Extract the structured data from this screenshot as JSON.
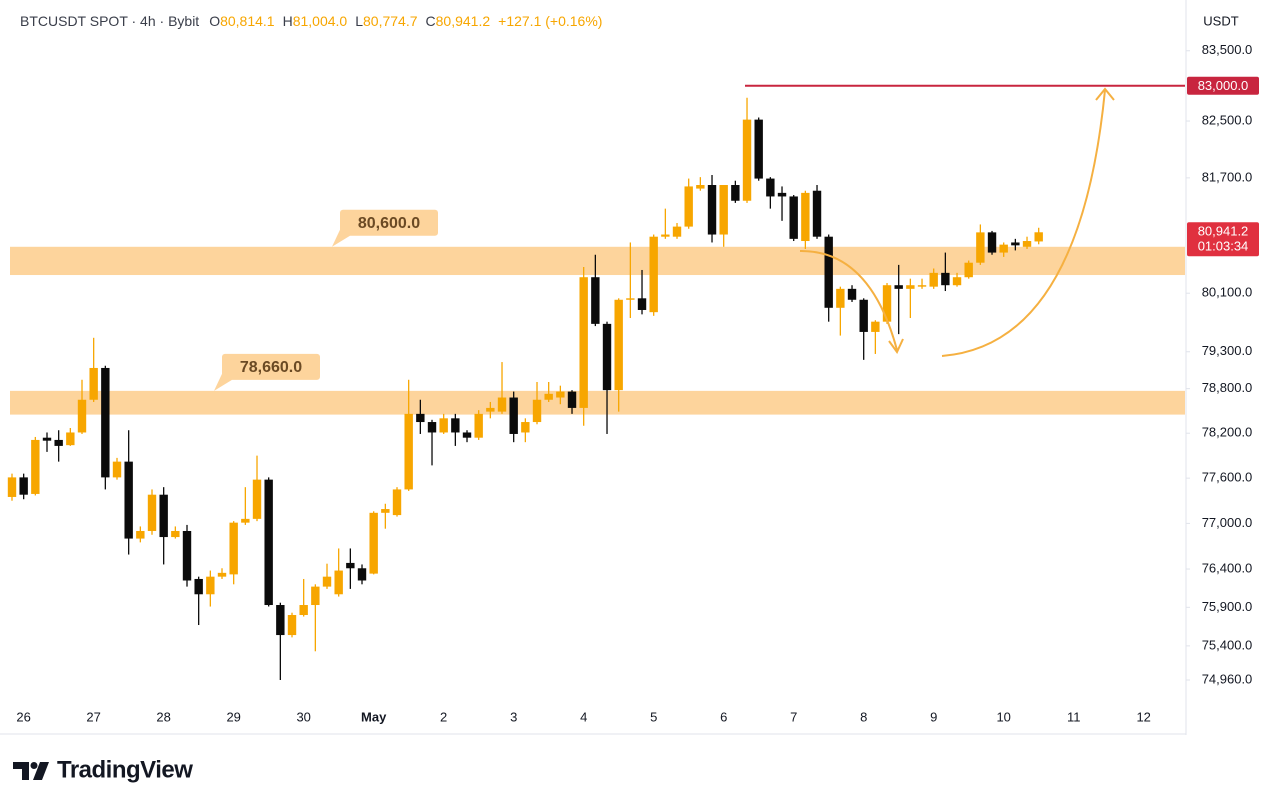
{
  "chart_data": {
    "type": "candlestick",
    "header": {
      "symbol": "BTCUSDT SPOT · 4h · Bybit",
      "ohlc": [
        {
          "key": "O",
          "label": "80,814.1"
        },
        {
          "key": "H",
          "label": "81,004.0"
        },
        {
          "key": "L",
          "label": "80,774.7"
        },
        {
          "key": "C",
          "label": "80,941.2"
        }
      ],
      "change": "+127.1 (+0.16%)"
    },
    "y_axis_label": "USDT",
    "log_scale": true,
    "grid": false,
    "up_color": "#f7a600",
    "down_color": "#0b0b0b",
    "ylim": [
      74665,
      84230
    ],
    "yticks": [
      {
        "value": 83500,
        "label": "83,500.0"
      },
      {
        "value": 82500,
        "label": "82,500.0"
      },
      {
        "value": 81700,
        "label": "81,700.0"
      },
      {
        "value": 80100,
        "label": "80,100.0"
      },
      {
        "value": 79300,
        "label": "79,300.0"
      },
      {
        "value": 78800,
        "label": "78,800.0"
      },
      {
        "value": 78200,
        "label": "78,200.0"
      },
      {
        "value": 77600,
        "label": "77,600.0"
      },
      {
        "value": 77000,
        "label": "77,000.0"
      },
      {
        "value": 76400,
        "label": "76,400.0"
      },
      {
        "value": 75900,
        "label": "75,900.0"
      },
      {
        "value": 75400,
        "label": "75,400.0"
      },
      {
        "value": 74960,
        "label": "74,960.0"
      }
    ],
    "target": {
      "value": 83000,
      "label": "83,000.0",
      "color": "#c8253f"
    },
    "last_price": {
      "value": 80941.2,
      "label": "80,941.2",
      "countdown": "01:03:34",
      "color": "#e0303f"
    },
    "zones": [
      {
        "label": "80,600.0",
        "low": 80350,
        "high": 80740,
        "color": "#fdd49c"
      },
      {
        "label": "78,660.0",
        "low": 78450,
        "high": 78770,
        "color": "#fdd49c"
      }
    ],
    "categories": [
      null,
      "26",
      null,
      null,
      null,
      null,
      null,
      "27",
      null,
      null,
      null,
      null,
      null,
      "28",
      null,
      null,
      null,
      null,
      null,
      "29",
      null,
      null,
      null,
      null,
      null,
      "30",
      null,
      null,
      null,
      null,
      null,
      "May",
      null,
      null,
      null,
      null,
      null,
      "2",
      null,
      null,
      null,
      null,
      null,
      "3",
      null,
      null,
      null,
      null,
      null,
      "4",
      null,
      null,
      null,
      null,
      null,
      "5",
      null,
      null,
      null,
      null,
      null,
      "6",
      null,
      null,
      null,
      null,
      null,
      "7",
      null,
      null,
      null,
      null,
      null,
      "8",
      null,
      null,
      null,
      null,
      null,
      "9",
      null,
      null,
      null,
      null,
      null,
      "10",
      null,
      null,
      null,
      null,
      null,
      "11",
      null,
      null,
      null,
      null,
      null,
      "12",
      null,
      null,
      null
    ],
    "open": [
      77350,
      77610,
      77390,
      78140,
      78110,
      78040,
      78210,
      78650,
      79080,
      77610,
      77820,
      76800,
      76900,
      77380,
      76820,
      76900,
      76270,
      76070,
      76300,
      76330,
      77010,
      77060,
      77580,
      75930,
      75540,
      75800,
      75930,
      76170,
      76070,
      76480,
      76410,
      76340,
      77140,
      77110,
      77450,
      78460,
      78350,
      78210,
      78400,
      78210,
      78140,
      78490,
      78490,
      78680,
      78210,
      78350,
      78650,
      78680,
      78760,
      78540,
      80320,
      79680,
      78780,
      80010,
      80030,
      79840,
      80880,
      80880,
      81020,
      81550,
      81600,
      80910,
      81600,
      81380,
      82520,
      81690,
      81490,
      81440,
      80820,
      81520,
      80880,
      79900,
      80160,
      80010,
      79570,
      79710,
      80210,
      80160,
      80190,
      80190,
      80380,
      80210,
      80320,
      80520,
      80940,
      80660,
      80800,
      80740,
      80814.1,
      null,
      null,
      null,
      null,
      null,
      null,
      null,
      null,
      null,
      null,
      null,
      null
    ],
    "high": [
      77660,
      77660,
      78150,
      78210,
      78240,
      78270,
      78920,
      79490,
      79110,
      77870,
      78240,
      76960,
      77450,
      77480,
      76960,
      76980,
      76300,
      76380,
      76410,
      77030,
      77480,
      77900,
      77610,
      75960,
      75830,
      76270,
      76200,
      76470,
      76670,
      76670,
      76460,
      77160,
      77260,
      77480,
      78920,
      78650,
      78380,
      78460,
      78460,
      78240,
      78510,
      78620,
      79160,
      78760,
      78400,
      78890,
      78890,
      78840,
      78780,
      80460,
      80630,
      79710,
      80030,
      80800,
      80420,
      80910,
      81270,
      81070,
      81690,
      81710,
      81740,
      81600,
      81660,
      82830,
      82550,
      81710,
      81580,
      81460,
      81520,
      81600,
      80910,
      80190,
      80210,
      80030,
      79730,
      80240,
      80490,
      80300,
      80300,
      80440,
      80660,
      80380,
      80550,
      81050,
      80960,
      80800,
      80850,
      80880,
      81004.0,
      null,
      null,
      null,
      null,
      null,
      null,
      null,
      null,
      null,
      null,
      null,
      null
    ],
    "low": [
      77300,
      77320,
      77370,
      77950,
      77820,
      78030,
      78190,
      78620,
      77450,
      77580,
      76590,
      76750,
      76850,
      76460,
      76800,
      76170,
      75670,
      75910,
      76270,
      76200,
      76980,
      77030,
      75910,
      74960,
      75510,
      75780,
      75330,
      76140,
      76040,
      76140,
      76200,
      76330,
      76930,
      77090,
      77430,
      78190,
      77770,
      78190,
      78030,
      78080,
      78110,
      78400,
      78460,
      78080,
      78080,
      78320,
      78620,
      78590,
      78460,
      78300,
      79650,
      78190,
      78490,
      79760,
      79810,
      79790,
      80850,
      80850,
      80990,
      81520,
      80800,
      80740,
      81350,
      81350,
      81660,
      81270,
      81100,
      80820,
      80710,
      80850,
      79710,
      79520,
      79980,
      79190,
      79270,
      79680,
      79540,
      79760,
      80160,
      80160,
      80130,
      80190,
      80300,
      80490,
      80630,
      80600,
      80690,
      80710,
      80774.7,
      null,
      null,
      null,
      null,
      null,
      null,
      null,
      null,
      null,
      null,
      null,
      null
    ],
    "close": [
      77610,
      77380,
      78110,
      78100,
      78030,
      78210,
      78650,
      79080,
      77610,
      77820,
      76800,
      76900,
      77380,
      76820,
      76900,
      76250,
      76070,
      76300,
      76350,
      77010,
      77060,
      77580,
      75930,
      75540,
      75800,
      75930,
      76170,
      76300,
      76380,
      76410,
      76250,
      77140,
      77190,
      77450,
      78460,
      78350,
      78210,
      78400,
      78210,
      78140,
      78460,
      78540,
      78680,
      78190,
      78350,
      78650,
      78730,
      78760,
      78540,
      80320,
      79680,
      78780,
      80010,
      80030,
      79870,
      80880,
      80910,
      81020,
      81580,
      81600,
      80910,
      81600,
      81380,
      82520,
      81690,
      81440,
      81440,
      80850,
      81490,
      80880,
      79900,
      80160,
      80010,
      79570,
      79710,
      80210,
      80160,
      80210,
      80210,
      80380,
      80210,
      80320,
      80520,
      80940,
      80660,
      80770,
      80760,
      80820,
      80941.2,
      null,
      null,
      null,
      null,
      null,
      null,
      null,
      null,
      null,
      null,
      null,
      null
    ]
  },
  "footer": {
    "brand": "TradingView"
  }
}
